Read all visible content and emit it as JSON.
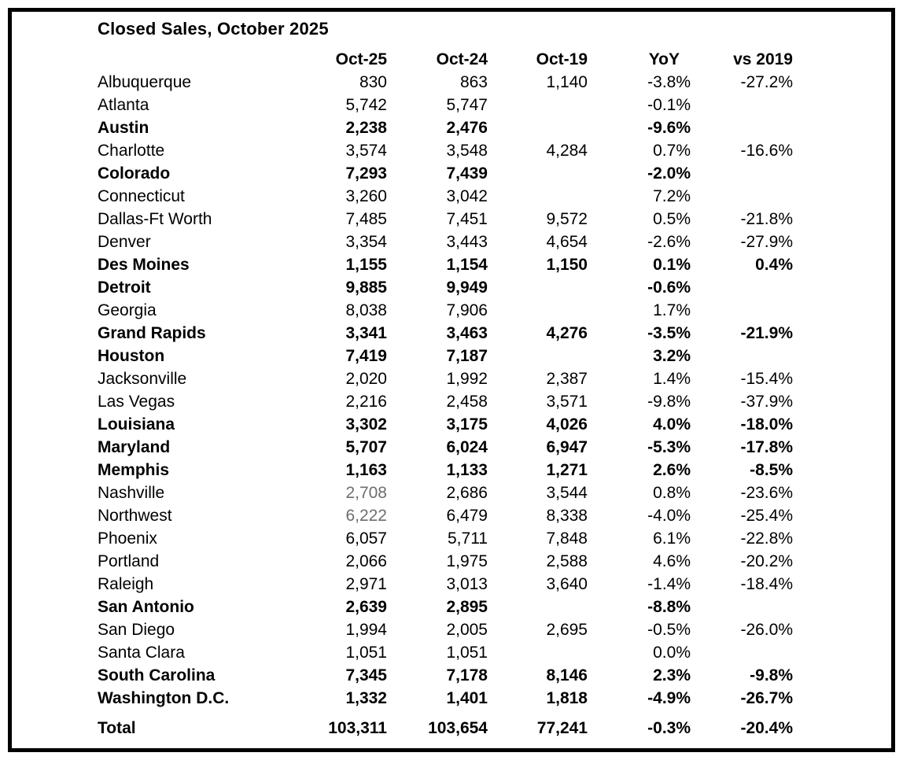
{
  "page": {
    "background": "#ffffff",
    "frame_border_color": "#000000",
    "text_color": "#000000",
    "muted_value_color": "#6e6e6e"
  },
  "chart_data": {
    "type": "table",
    "title": "Closed Sales, October 2025",
    "columns": [
      "",
      "Oct-25",
      "Oct-24",
      "Oct-19",
      "YoY",
      "vs 2019"
    ],
    "rows": [
      {
        "label": "Albuquerque",
        "oct25": "830",
        "oct24": "863",
        "oct19": "1,140",
        "yoy": "-3.8%",
        "vs2019": "-27.2%",
        "bold": false,
        "oct25_muted": false
      },
      {
        "label": "Atlanta",
        "oct25": "5,742",
        "oct24": "5,747",
        "oct19": "",
        "yoy": "-0.1%",
        "vs2019": "",
        "bold": false,
        "oct25_muted": false
      },
      {
        "label": "Austin",
        "oct25": "2,238",
        "oct24": "2,476",
        "oct19": "",
        "yoy": "-9.6%",
        "vs2019": "",
        "bold": true,
        "oct25_muted": false
      },
      {
        "label": "Charlotte",
        "oct25": "3,574",
        "oct24": "3,548",
        "oct19": "4,284",
        "yoy": "0.7%",
        "vs2019": "-16.6%",
        "bold": false,
        "oct25_muted": false
      },
      {
        "label": "Colorado",
        "oct25": "7,293",
        "oct24": "7,439",
        "oct19": "",
        "yoy": "-2.0%",
        "vs2019": "",
        "bold": true,
        "oct25_muted": false
      },
      {
        "label": "Connecticut",
        "oct25": "3,260",
        "oct24": "3,042",
        "oct19": "",
        "yoy": "7.2%",
        "vs2019": "",
        "bold": false,
        "oct25_muted": false
      },
      {
        "label": "Dallas-Ft Worth",
        "oct25": "7,485",
        "oct24": "7,451",
        "oct19": "9,572",
        "yoy": "0.5%",
        "vs2019": "-21.8%",
        "bold": false,
        "oct25_muted": false
      },
      {
        "label": "Denver",
        "oct25": "3,354",
        "oct24": "3,443",
        "oct19": "4,654",
        "yoy": "-2.6%",
        "vs2019": "-27.9%",
        "bold": false,
        "oct25_muted": false
      },
      {
        "label": "Des Moines",
        "oct25": "1,155",
        "oct24": "1,154",
        "oct19": "1,150",
        "yoy": "0.1%",
        "vs2019": "0.4%",
        "bold": true,
        "oct25_muted": false
      },
      {
        "label": "Detroit",
        "oct25": "9,885",
        "oct24": "9,949",
        "oct19": "",
        "yoy": "-0.6%",
        "vs2019": "",
        "bold": true,
        "oct25_muted": false
      },
      {
        "label": "Georgia",
        "oct25": "8,038",
        "oct24": "7,906",
        "oct19": "",
        "yoy": "1.7%",
        "vs2019": "",
        "bold": false,
        "oct25_muted": false
      },
      {
        "label": "Grand Rapids",
        "oct25": "3,341",
        "oct24": "3,463",
        "oct19": "4,276",
        "yoy": "-3.5%",
        "vs2019": "-21.9%",
        "bold": true,
        "oct25_muted": false
      },
      {
        "label": "Houston",
        "oct25": "7,419",
        "oct24": "7,187",
        "oct19": "",
        "yoy": "3.2%",
        "vs2019": "",
        "bold": true,
        "oct25_muted": false
      },
      {
        "label": "Jacksonville",
        "oct25": "2,020",
        "oct24": "1,992",
        "oct19": "2,387",
        "yoy": "1.4%",
        "vs2019": "-15.4%",
        "bold": false,
        "oct25_muted": false
      },
      {
        "label": "Las Vegas",
        "oct25": "2,216",
        "oct24": "2,458",
        "oct19": "3,571",
        "yoy": "-9.8%",
        "vs2019": "-37.9%",
        "bold": false,
        "oct25_muted": false
      },
      {
        "label": "Louisiana",
        "oct25": "3,302",
        "oct24": "3,175",
        "oct19": "4,026",
        "yoy": "4.0%",
        "vs2019": "-18.0%",
        "bold": true,
        "oct25_muted": false
      },
      {
        "label": "Maryland",
        "oct25": "5,707",
        "oct24": "6,024",
        "oct19": "6,947",
        "yoy": "-5.3%",
        "vs2019": "-17.8%",
        "bold": true,
        "oct25_muted": false
      },
      {
        "label": "Memphis",
        "oct25": "1,163",
        "oct24": "1,133",
        "oct19": "1,271",
        "yoy": "2.6%",
        "vs2019": "-8.5%",
        "bold": true,
        "oct25_muted": false
      },
      {
        "label": "Nashville",
        "oct25": "2,708",
        "oct24": "2,686",
        "oct19": "3,544",
        "yoy": "0.8%",
        "vs2019": "-23.6%",
        "bold": false,
        "oct25_muted": true
      },
      {
        "label": "Northwest",
        "oct25": "6,222",
        "oct24": "6,479",
        "oct19": "8,338",
        "yoy": "-4.0%",
        "vs2019": "-25.4%",
        "bold": false,
        "oct25_muted": true
      },
      {
        "label": "Phoenix",
        "oct25": "6,057",
        "oct24": "5,711",
        "oct19": "7,848",
        "yoy": "6.1%",
        "vs2019": "-22.8%",
        "bold": false,
        "oct25_muted": false
      },
      {
        "label": "Portland",
        "oct25": "2,066",
        "oct24": "1,975",
        "oct19": "2,588",
        "yoy": "4.6%",
        "vs2019": "-20.2%",
        "bold": false,
        "oct25_muted": false
      },
      {
        "label": "Raleigh",
        "oct25": "2,971",
        "oct24": "3,013",
        "oct19": "3,640",
        "yoy": "-1.4%",
        "vs2019": "-18.4%",
        "bold": false,
        "oct25_muted": false
      },
      {
        "label": "San Antonio",
        "oct25": "2,639",
        "oct24": "2,895",
        "oct19": "",
        "yoy": "-8.8%",
        "vs2019": "",
        "bold": true,
        "oct25_muted": false
      },
      {
        "label": "San Diego",
        "oct25": "1,994",
        "oct24": "2,005",
        "oct19": "2,695",
        "yoy": "-0.5%",
        "vs2019": "-26.0%",
        "bold": false,
        "oct25_muted": false
      },
      {
        "label": "Santa Clara",
        "oct25": "1,051",
        "oct24": "1,051",
        "oct19": "",
        "yoy": "0.0%",
        "vs2019": "",
        "bold": false,
        "oct25_muted": false
      },
      {
        "label": "South Carolina",
        "oct25": "7,345",
        "oct24": "7,178",
        "oct19": "8,146",
        "yoy": "2.3%",
        "vs2019": "-9.8%",
        "bold": true,
        "oct25_muted": false
      },
      {
        "label": "Washington D.C.",
        "oct25": "1,332",
        "oct24": "1,401",
        "oct19": "1,818",
        "yoy": "-4.9%",
        "vs2019": "-26.7%",
        "bold": true,
        "oct25_muted": false
      }
    ],
    "total_row": {
      "label": "Total",
      "oct25": "103,311",
      "oct24": "103,654",
      "oct19": "77,241",
      "yoy": "-0.3%",
      "vs2019": "-20.4%",
      "bold": true,
      "oct25_muted": false
    }
  }
}
